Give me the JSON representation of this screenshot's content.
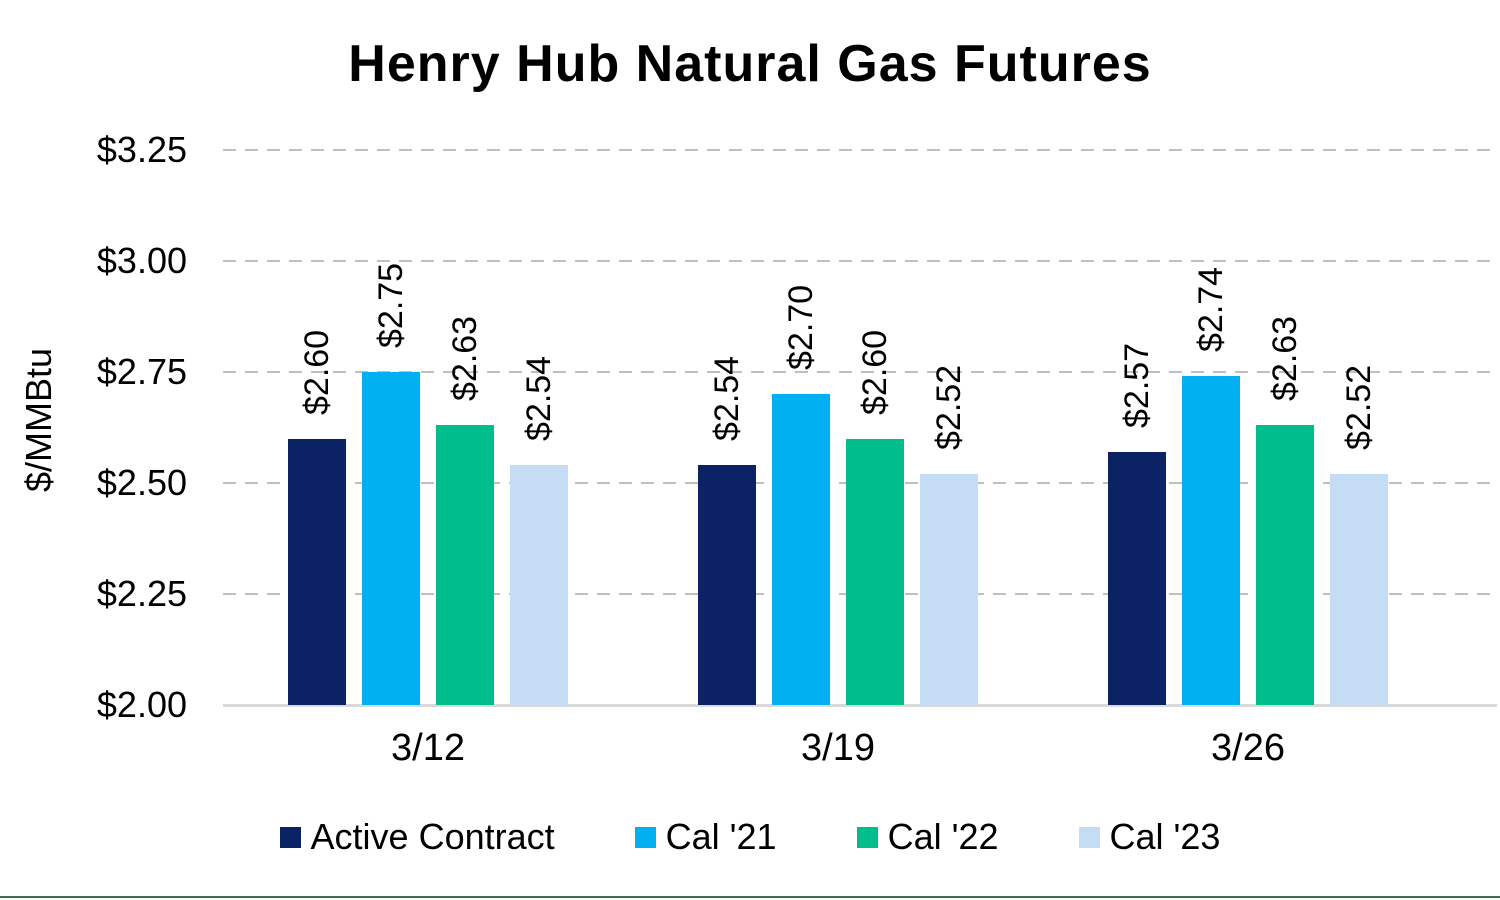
{
  "chart_data": {
    "type": "bar",
    "title": "Henry Hub Natural Gas Futures",
    "ylabel": "$/MMBtu",
    "xlabel": "",
    "categories": [
      "3/12",
      "3/19",
      "3/26"
    ],
    "series": [
      {
        "name": "Active Contract",
        "color": "#0B2264",
        "values": [
          2.6,
          2.54,
          2.57
        ],
        "labels": [
          "$2.60",
          "$2.54",
          "$2.57"
        ]
      },
      {
        "name": "Cal '21",
        "color": "#00B0F0",
        "values": [
          2.75,
          2.7,
          2.74
        ],
        "labels": [
          "$2.75",
          "$2.70",
          "$2.74"
        ]
      },
      {
        "name": "Cal '22",
        "color": "#00BD8C",
        "values": [
          2.63,
          2.6,
          2.63
        ],
        "labels": [
          "$2.63",
          "$2.60",
          "$2.63"
        ]
      },
      {
        "name": "Cal '23",
        "color": "#C5DDF4",
        "values": [
          2.54,
          2.52,
          2.52
        ],
        "labels": [
          "$2.54",
          "$2.52",
          "$2.52"
        ]
      }
    ],
    "y_axis": {
      "min": 2.0,
      "max": 3.25,
      "step": 0.25,
      "tick_labels": [
        "$2.00",
        "$2.25",
        "$2.50",
        "$2.75",
        "$3.00",
        "$3.25"
      ]
    },
    "grid": "dashed-horizontal",
    "legend_position": "bottom",
    "data_label_style": "rotated-90-outside-end",
    "colors": {
      "gridline": "#BFBFBF",
      "axis_line": "#D9D9D9",
      "text": "#000000",
      "background": "#FFFFFF",
      "bottom_border": "#426B52"
    }
  }
}
